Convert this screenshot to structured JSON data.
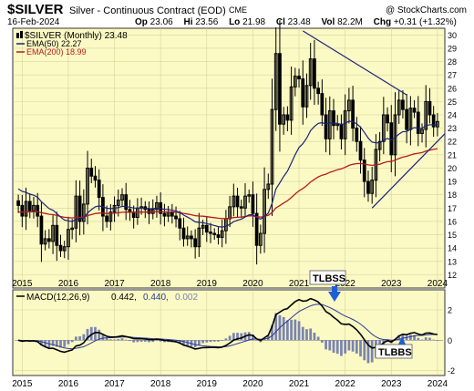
{
  "header": {
    "symbol": "$SILVER",
    "description": "Silver - Continuous Contract (EOD)",
    "exchange": "CME",
    "copyright": "@ StockCharts.com",
    "date": "16-Feb-2024",
    "open_label": "Op",
    "open": "23.06",
    "high_label": "Hi",
    "high": "23.56",
    "low_label": "Lo",
    "low": "21.98",
    "close_label": "Cl",
    "close": "23.48",
    "volume_label": "Vol",
    "volume": "82.2M",
    "change_label": "Chg",
    "change": "+0.31 (+1.32%)",
    "up_arrow": "▲"
  },
  "legend": {
    "price": "$SILVER (Monthly) 23.48",
    "ema50": "EMA(50) 22.27",
    "ema200": "EMA(200) 18.99"
  },
  "macd_legend": {
    "name": "MACD(12,26,9)",
    "v1": "0.442,",
    "v2": "0.440,",
    "v3": "0.002"
  },
  "annotations": {
    "tlbss": "TLBSS",
    "tlbbs": "TLBBS"
  },
  "colors": {
    "panel_bg": "#fbf9c4",
    "candle": "#000000",
    "ema50": "#1a237e",
    "ema200": "#b71c1c",
    "macd_hist": "#7a84b0",
    "signal": "#2a3a9a",
    "annotation_arrow": "#1f5fd6"
  },
  "chart_data": [
    {
      "type": "candlestick",
      "title": "$SILVER (Monthly)",
      "price_axis_ticks": [
        12,
        13,
        14,
        15,
        16,
        17,
        18,
        19,
        20,
        21,
        22,
        23,
        24,
        25,
        26,
        27,
        28,
        29,
        30
      ],
      "x_axis_years": [
        "2015",
        "2016",
        "2017",
        "2018",
        "2019",
        "2020",
        "2021",
        "2022",
        "2023",
        "2024"
      ],
      "ylim": [
        11,
        30.5
      ],
      "closes": [
        17.2,
        16.4,
        17.5,
        16.8,
        17.2,
        16.4,
        14.3,
        14.7,
        14.5,
        15.7,
        14.2,
        13.8,
        14.1,
        15.4,
        15.5,
        17.9,
        16.0,
        17.3,
        20.0,
        19.4,
        19.1,
        17.8,
        16.4,
        16.0,
        16.7,
        17.2,
        17.6,
        18.0,
        16.9,
        16.7,
        16.3,
        17.0,
        17.1,
        16.9,
        16.6,
        16.9,
        17.4,
        16.6,
        16.4,
        16.7,
        16.4,
        16.2,
        15.5,
        14.7,
        14.9,
        14.7,
        14.1,
        15.5,
        15.7,
        15.2,
        15.1,
        15.0,
        14.8,
        15.3,
        16.2,
        17.1,
        17.9,
        17.1,
        17.0,
        17.9,
        18.0,
        16.6,
        14.2,
        15.1,
        18.4,
        18.8,
        24.4,
        28.6,
        23.3,
        24.0,
        23.6,
        26.1,
        26.9,
        26.7,
        24.6,
        26.2,
        28.2,
        26.0,
        25.6,
        24.0,
        22.2,
        24.3,
        23.2,
        23.3,
        22.2,
        24.3,
        25.1,
        23.0,
        22.0,
        20.6,
        19.0,
        18.1,
        19.1,
        21.4,
        22.0,
        24.0,
        23.4,
        21.0,
        24.0,
        25.1,
        24.4,
        22.9,
        24.5,
        24.2,
        22.6,
        22.9,
        25.0,
        24.0,
        23.1,
        23.5
      ],
      "ema50": {
        "name": "EMA(50)",
        "last": 22.27
      },
      "ema200": {
        "name": "EMA(200)",
        "last": 18.99
      },
      "trendlines": [
        "falling resistance 2021–2023",
        "rising support 2022–2024"
      ]
    },
    {
      "type": "line",
      "title": "MACD(12,26,9)",
      "series": [
        {
          "name": "MACD",
          "last": 0.442
        },
        {
          "name": "Signal",
          "last": 0.44
        },
        {
          "name": "Histogram",
          "last": 0.002
        }
      ],
      "annotations": [
        "TLBSS",
        "TLBBS"
      ]
    }
  ]
}
